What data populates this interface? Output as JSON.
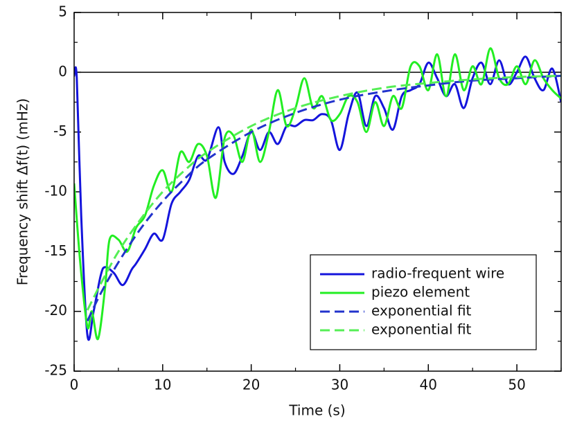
{
  "chart_data": {
    "type": "line",
    "xlabel": "Time (s)",
    "ylabel": "Frequency shift Δf(t) (mHz)",
    "xlim": [
      0,
      55
    ],
    "xticks": [
      0,
      10,
      20,
      30,
      40,
      50
    ],
    "xminorticks": [
      5,
      15,
      25,
      35,
      45,
      55
    ],
    "ylim": [
      -25,
      5
    ],
    "yticks": [
      -25,
      -20,
      -15,
      -10,
      -5,
      0,
      5
    ],
    "yminorticks": [
      -22.5,
      -17.5,
      -12.5,
      -7.5,
      -2.5,
      2.5
    ],
    "reference_line": 0,
    "legend": "lower right",
    "series": [
      {
        "name": "radio-frequent wire",
        "color": "#1414dc",
        "dash": false,
        "x": [
          0,
          0.3,
          0.8,
          1.5,
          2.2,
          3,
          3.5,
          4.5,
          5.5,
          6.5,
          7,
          8,
          9,
          10,
          11,
          12,
          13,
          14,
          15,
          16.3,
          17,
          18,
          19,
          20,
          21,
          22,
          23,
          24,
          25,
          26,
          27,
          28,
          29,
          30,
          31,
          32,
          33,
          34,
          35,
          36,
          37,
          38,
          39,
          40,
          41,
          42,
          43,
          44,
          45,
          46,
          47,
          48,
          49,
          50,
          51,
          52,
          53,
          54,
          55
        ],
        "values": [
          -0.3,
          -0.5,
          -12,
          -22,
          -20,
          -17,
          -16.3,
          -16.8,
          -17.8,
          -16.5,
          -16,
          -14.8,
          -13.5,
          -14,
          -11,
          -10,
          -9,
          -7,
          -7.3,
          -4.6,
          -7.5,
          -8.5,
          -7,
          -5,
          -6.5,
          -5,
          -6,
          -4.5,
          -4.5,
          -4,
          -4,
          -3.5,
          -4,
          -6.5,
          -3.5,
          -1.7,
          -4.5,
          -2,
          -3,
          -4.8,
          -2,
          -1.5,
          -1,
          0.8,
          -0.5,
          -2,
          -1,
          -3,
          -0.5,
          0.8,
          -1,
          1,
          -1,
          0,
          1.3,
          -0.5,
          -1.5,
          0.3,
          -2.5
        ]
      },
      {
        "name": "piezo element",
        "color": "#22ee22",
        "dash": false,
        "x": [
          0,
          0.7,
          1.5,
          2,
          2.7,
          3.5,
          4,
          5,
          6,
          7,
          8,
          9,
          10,
          11,
          12,
          13,
          14,
          15,
          16,
          17,
          18,
          19,
          20,
          21,
          22,
          23,
          24,
          25,
          26,
          27,
          28,
          29,
          30,
          31,
          32,
          33,
          34,
          35,
          36,
          37,
          38,
          39,
          40,
          41,
          42,
          43,
          44,
          45,
          46,
          47,
          48,
          49,
          50,
          51,
          52,
          53,
          54,
          55
        ],
        "values": [
          -9.3,
          -16,
          -21.3,
          -20,
          -22.3,
          -18,
          -14,
          -14,
          -15,
          -13,
          -12,
          -9.5,
          -8.2,
          -10,
          -6.7,
          -7.5,
          -6,
          -7,
          -10.5,
          -5.5,
          -5.3,
          -7.5,
          -4.8,
          -7.5,
          -5,
          -1.5,
          -4.5,
          -3,
          -0.5,
          -3,
          -2,
          -4,
          -3.5,
          -2,
          -2.5,
          -5,
          -2.5,
          -4.5,
          -2,
          -3,
          0.5,
          0.5,
          -1.5,
          1.5,
          -2,
          1.5,
          -1.5,
          0.5,
          -1,
          2,
          -0.5,
          -1,
          0.5,
          -1,
          1,
          -0.5,
          -1.5,
          -2.2
        ]
      },
      {
        "name": "exponential fit",
        "color": "#2233cc",
        "dash": true,
        "x": [
          1.5,
          3,
          5,
          7.5,
          10,
          12.5,
          15,
          20,
          25,
          30,
          35,
          40,
          45,
          50,
          55
        ],
        "values": [
          -20.8,
          -18.5,
          -15.9,
          -13.1,
          -10.8,
          -8.9,
          -7.3,
          -5.0,
          -3.4,
          -2.3,
          -1.6,
          -1.1,
          -0.7,
          -0.5,
          -0.3
        ]
      },
      {
        "name": "exponential fit",
        "color": "#55ee55",
        "dash": true,
        "x": [
          1.5,
          3,
          5,
          7.5,
          10,
          12.5,
          15,
          20,
          25,
          30,
          35,
          40,
          45,
          50,
          55
        ],
        "values": [
          -19.9,
          -17.7,
          -15.0,
          -12.3,
          -10.0,
          -8.2,
          -6.7,
          -4.5,
          -3.0,
          -2.0,
          -1.3,
          -0.9,
          -0.6,
          -0.4,
          -0.3
        ]
      }
    ]
  }
}
